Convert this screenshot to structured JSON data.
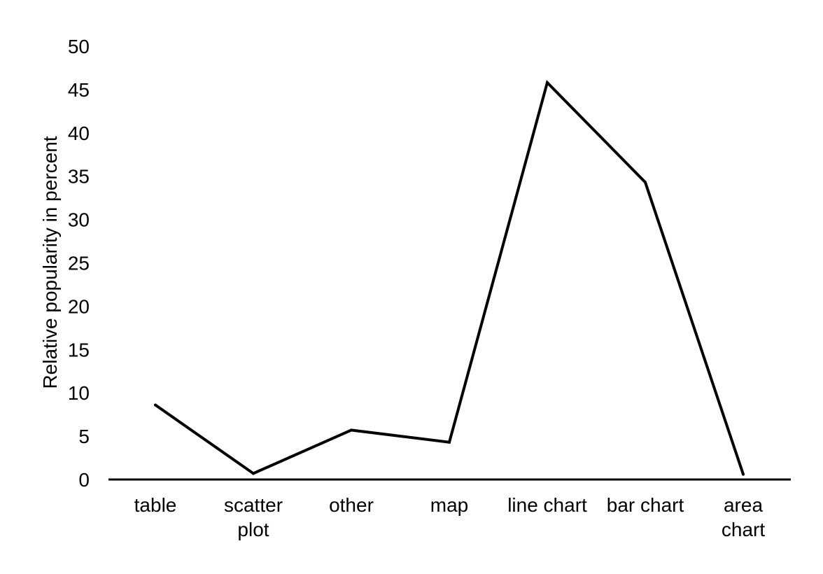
{
  "chart_data": {
    "type": "line",
    "title": "",
    "xlabel": "",
    "ylabel": "Relative popularity  in percent",
    "categories": [
      "table",
      "scatter plot",
      "other",
      "map",
      "line chart",
      "bar chart",
      "area chart"
    ],
    "series": [
      {
        "values": [
          8.6,
          0.7,
          5.7,
          4.3,
          45.8,
          34.3,
          0.6
        ]
      }
    ],
    "ylim": [
      0,
      50
    ],
    "yticks": [
      0,
      5,
      10,
      15,
      20,
      25,
      30,
      35,
      40,
      45,
      50
    ],
    "grid": false,
    "legend": "none",
    "line_color": "#000000",
    "axis_color": "#000000"
  }
}
